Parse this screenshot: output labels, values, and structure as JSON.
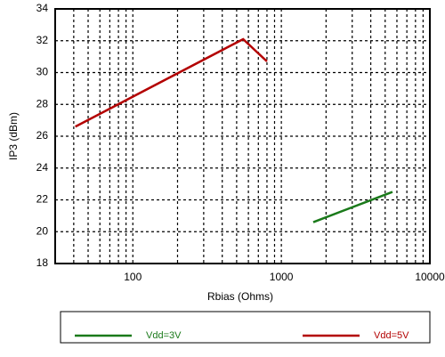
{
  "chart_data": {
    "type": "line",
    "xlabel": "Rbias (Ohms)",
    "ylabel": "IP3 (dBm)",
    "xscale": "log",
    "xlim": [
      30,
      10000
    ],
    "xticks": [
      100,
      1000,
      10000
    ],
    "xminorticks": [
      40,
      50,
      60,
      70,
      80,
      90,
      200,
      300,
      400,
      500,
      600,
      700,
      800,
      900,
      2000,
      3000,
      4000,
      5000,
      6000,
      7000,
      8000,
      9000
    ],
    "ylim": [
      18,
      34
    ],
    "yticks": [
      18,
      20,
      22,
      24,
      26,
      28,
      30,
      32,
      34
    ],
    "grid": true,
    "legend": "below",
    "series": [
      {
        "name": "Vdd=3V",
        "color": "#1a7a1a",
        "x": [
          1640,
          5600
        ],
        "values": [
          20.6,
          22.5
        ]
      },
      {
        "name": "Vdd=5V",
        "color": "#b30000",
        "x": [
          41,
          553,
          800
        ],
        "values": [
          26.6,
          32.1,
          30.7
        ]
      }
    ]
  }
}
